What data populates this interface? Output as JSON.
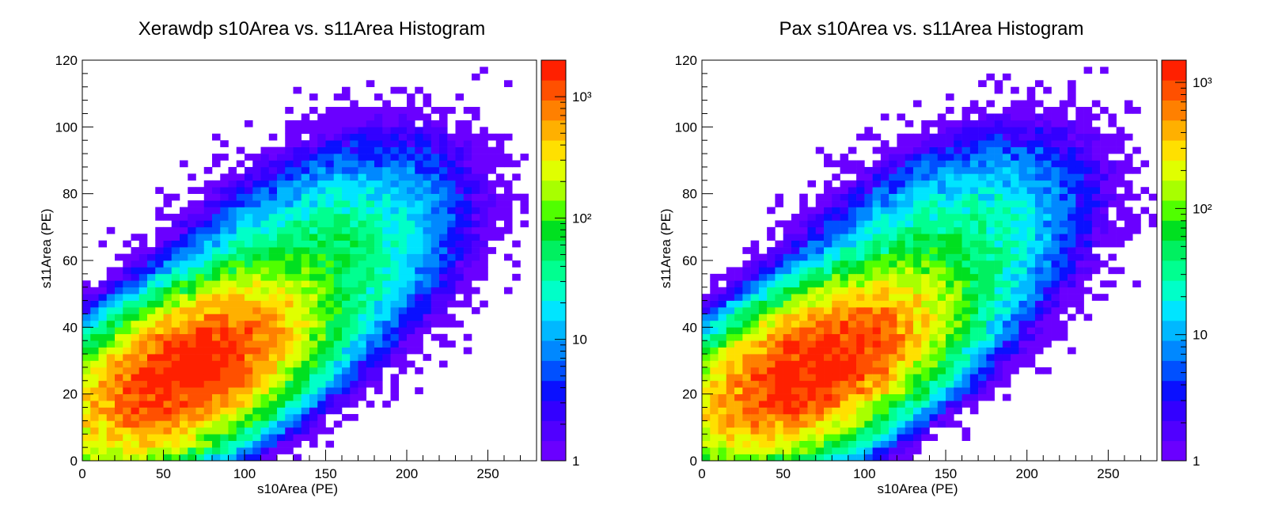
{
  "colors": {
    "palette": [
      "#6a00ff",
      "#5000ff",
      "#3300ff",
      "#0a10ff",
      "#0050ff",
      "#0088ff",
      "#00b8ff",
      "#00e5ff",
      "#00ffc8",
      "#00ff90",
      "#00f060",
      "#00e020",
      "#50ff00",
      "#a8ff00",
      "#e0ff00",
      "#ffe000",
      "#ffb000",
      "#ff8000",
      "#ff5000",
      "#ff2000"
    ]
  },
  "chart_data": [
    {
      "type": "heatmap",
      "title": "Xerawdp s10Area vs. s11Area Histogram",
      "xlabel": "s10Area (PE)",
      "ylabel": "s11Area (PE)",
      "xlim": [
        0,
        280
      ],
      "ylim": [
        0,
        120
      ],
      "xticks": [
        0,
        50,
        100,
        150,
        200,
        250
      ],
      "yticks": [
        0,
        20,
        40,
        60,
        80,
        100,
        120
      ],
      "bin_width": [
        5,
        2
      ],
      "colorbar": {
        "scale": "log",
        "range": [
          1,
          2000
        ],
        "tick_values": [
          1,
          10,
          100,
          1000
        ],
        "tick_labels": [
          "1",
          "10",
          "10²",
          "10³"
        ]
      },
      "peak": {
        "x": 65,
        "y": 27,
        "counts": 2000
      },
      "core_shape": {
        "sx": 34,
        "sy": 12,
        "rho": 0.55
      },
      "tail_shape": {
        "mean_x": 135,
        "mean_y": 55,
        "sx": 42,
        "sy": 17,
        "rho": 0.5,
        "scale": 0.03
      },
      "seed": 7
    },
    {
      "type": "heatmap",
      "title": "Pax s10Area vs. s11Area Histogram",
      "xlabel": "s10Area (PE)",
      "ylabel": "s11Area (PE)",
      "xlim": [
        0,
        280
      ],
      "ylim": [
        0,
        120
      ],
      "xticks": [
        0,
        50,
        100,
        150,
        200,
        250
      ],
      "yticks": [
        0,
        20,
        40,
        60,
        80,
        100,
        120
      ],
      "bin_width": [
        5,
        2
      ],
      "colorbar": {
        "scale": "log",
        "range": [
          1,
          1500
        ],
        "tick_values": [
          1,
          10,
          100,
          1000
        ],
        "tick_labels": [
          "1",
          "10",
          "10²",
          "10³"
        ]
      },
      "peak": {
        "x": 70,
        "y": 28,
        "counts": 1500
      },
      "core_shape": {
        "sx": 36,
        "sy": 12,
        "rho": 0.55
      },
      "tail_shape": {
        "mean_x": 140,
        "mean_y": 58,
        "sx": 42,
        "sy": 17,
        "rho": 0.5,
        "scale": 0.03
      },
      "seed": 13
    }
  ]
}
